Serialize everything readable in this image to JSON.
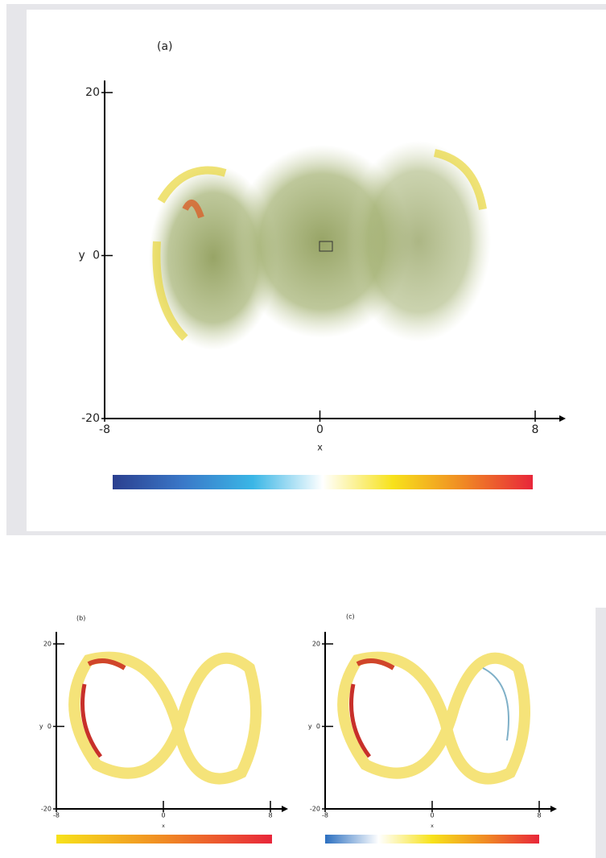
{
  "panels": [
    {
      "label": "(a)",
      "xlabel": "x",
      "ylabel": "y",
      "xlim": [
        -8,
        8
      ],
      "ylim": [
        -20,
        20
      ],
      "xticks": [
        -8,
        0,
        8
      ],
      "yticks": [
        -20,
        0,
        20
      ],
      "colorbar": [
        "#2b3f8f",
        "#3a78c8",
        "#3ab6e6",
        "#ffffff",
        "#f7e21b",
        "#f08a24",
        "#e8263a"
      ]
    },
    {
      "label": "(b)",
      "xlabel": "x",
      "ylabel": "y",
      "xlim": [
        -8,
        8
      ],
      "ylim": [
        -20,
        20
      ],
      "xticks": [
        -8,
        0,
        8
      ],
      "yticks": [
        -20,
        0,
        20
      ],
      "colorbar": [
        "#f7e21b",
        "#f08a24",
        "#e8263a"
      ]
    },
    {
      "label": "(c)",
      "xlabel": "x",
      "ylabel": "y",
      "xlim": [
        -8,
        8
      ],
      "ylim": [
        -20,
        20
      ],
      "xticks": [
        -8,
        0,
        8
      ],
      "yticks": [
        -20,
        0,
        20
      ],
      "colorbar": [
        "#2b6fc0",
        "#ffffff",
        "#f7e21b",
        "#f08a24",
        "#e8263a"
      ]
    }
  ]
}
